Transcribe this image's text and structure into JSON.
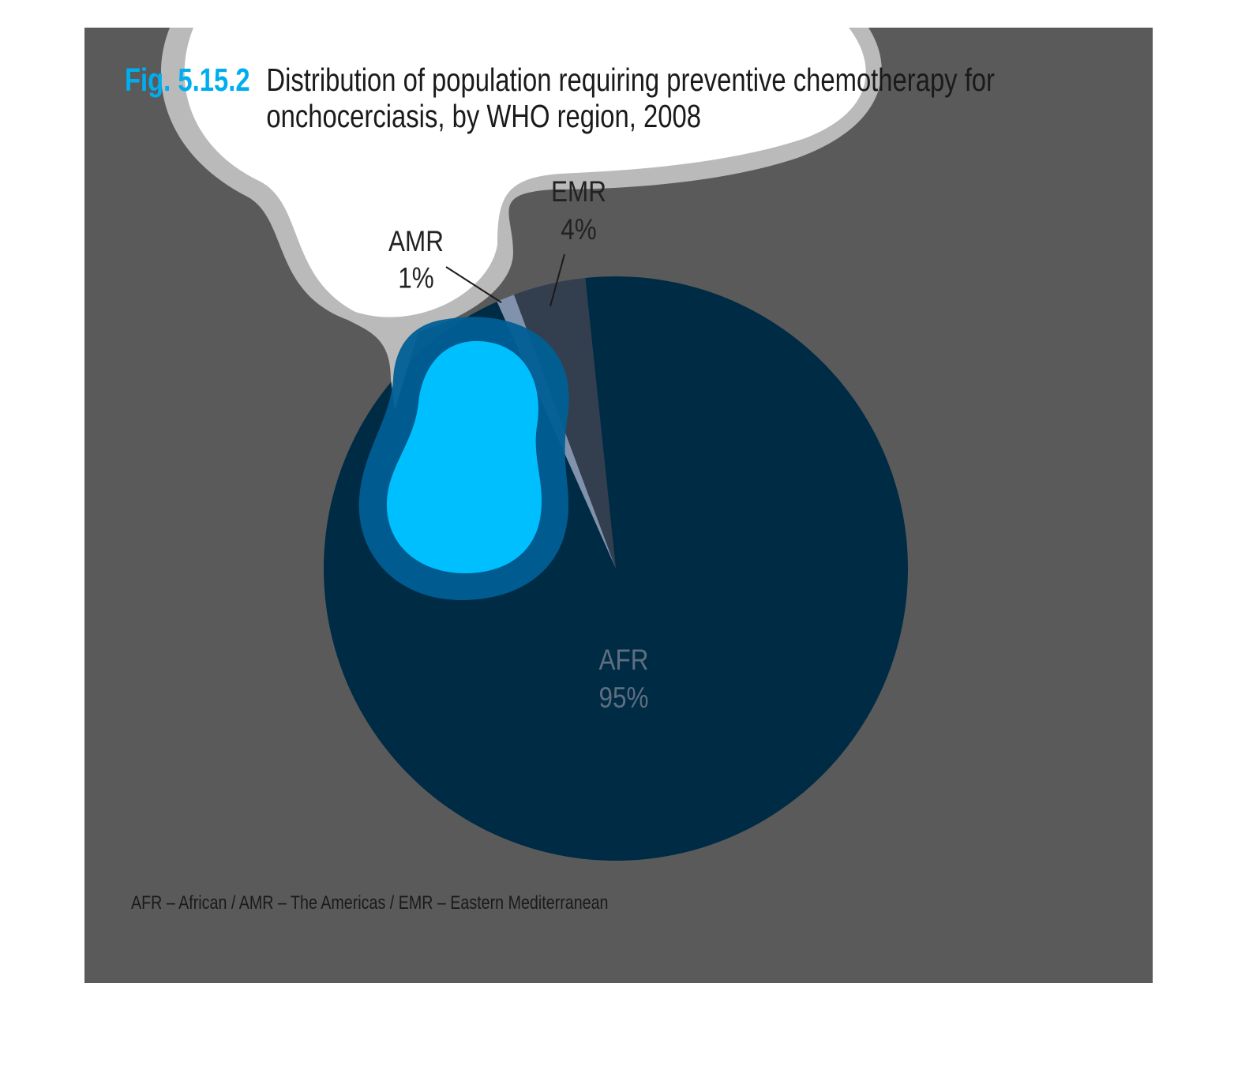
{
  "figure_label": "Fig. 5.15.2",
  "chart_data": {
    "type": "pie",
    "title": "Distribution of population requiring preventive chemotherapy for onchocerciasis, by WHO region, 2008",
    "categories": [
      "AMR",
      "EMR",
      "AFR"
    ],
    "values": [
      1,
      4,
      95
    ],
    "value_labels": [
      "1%",
      "4%",
      "95%"
    ],
    "colors": [
      "#8fa6c8",
      "#333f4f",
      "#002b45"
    ],
    "note": "AFR – African / AMR – The Americas / EMR – Eastern Mediterranean"
  }
}
